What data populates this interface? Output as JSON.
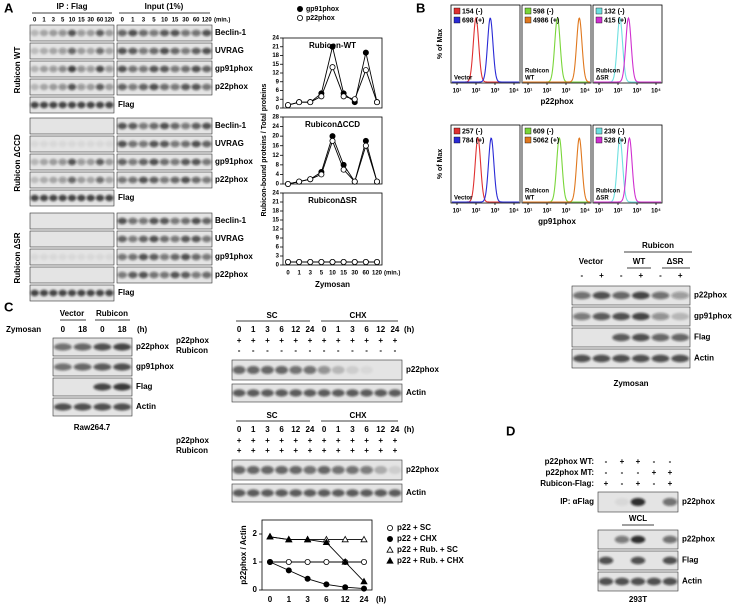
{
  "figure": {
    "panel_a": {
      "label": "A",
      "ip_header": "IP : Flag",
      "input_header": "Input (1%)",
      "times": [
        "0",
        "1",
        "3",
        "5",
        "10",
        "15",
        "30",
        "60",
        "120"
      ],
      "time_unit": "(min.)",
      "groups": [
        {
          "name": "Rubicon WT",
          "blots": [
            "Beclin-1",
            "UVRAG",
            "gp91phox",
            "p22phox"
          ],
          "flag_blot": "Flag"
        },
        {
          "name": "Rubicon ΔCCD",
          "blots": [
            "Beclin-1",
            "UVRAG",
            "gp91phox",
            "p22phox"
          ],
          "flag_blot": "Flag"
        },
        {
          "name": "Rubicon ΔSR",
          "blots": [
            "Beclin-1",
            "UVRAG",
            "gp91phox",
            "p22phox"
          ],
          "flag_blot": "Flag"
        }
      ],
      "chart": {
        "type": "line",
        "y_label": "Rubicon-bound proteins / Total proteins",
        "x_label": "Zymosan",
        "categories": [
          "0",
          "1",
          "3",
          "5",
          "10",
          "15",
          "30",
          "60",
          "120"
        ],
        "x_unit": "(min.)",
        "legend": [
          {
            "name": "gp91phox",
            "marker": "circle-filled"
          },
          {
            "name": "p22phox",
            "marker": "circle-open"
          }
        ],
        "subplots": [
          {
            "title": "Rubicon-WT",
            "ylim": [
              0,
              24
            ],
            "yticks": [
              0,
              3,
              6,
              9,
              12,
              15,
              18,
              21,
              24
            ],
            "series": [
              {
                "values": [
                  1,
                  2,
                  2,
                  5,
                  21,
                  5,
                  2,
                  19,
                  2
                ]
              },
              {
                "values": [
                  1,
                  2,
                  2,
                  4,
                  14,
                  4,
                  3,
                  13,
                  2
                ]
              }
            ]
          },
          {
            "title": "RubiconΔCCD",
            "ylim": [
              0,
              28
            ],
            "yticks": [
              0,
              4,
              8,
              12,
              16,
              20,
              24,
              28
            ],
            "series": [
              {
                "values": [
                  0,
                  1,
                  2,
                  5,
                  20,
                  8,
                  1,
                  18,
                  1
                ]
              },
              {
                "values": [
                  0,
                  1,
                  2,
                  4,
                  18,
                  6,
                  1,
                  16,
                  1
                ]
              }
            ]
          },
          {
            "title": "RubiconΔSR",
            "ylim": [
              0,
              24
            ],
            "yticks": [
              0,
              3,
              6,
              9,
              12,
              15,
              18,
              21,
              24
            ],
            "series": [
              {
                "values": [
                  1,
                  1,
                  1,
                  1,
                  1,
                  1,
                  1,
                  1,
                  1
                ]
              },
              {
                "values": [
                  1,
                  1,
                  1,
                  1,
                  1,
                  1,
                  1,
                  1,
                  1
                ]
              }
            ]
          }
        ]
      }
    },
    "panel_b": {
      "label": "B",
      "y_label": "% of Max",
      "xtick_labels": [
        "10¹",
        "10²",
        "10³",
        "10⁴"
      ],
      "rows": [
        {
          "x_label": "p22phox",
          "boxes": [
            {
              "sample": [
                "Vector"
              ],
              "entries": [
                {
                  "text": "154 (-)",
                  "color": "#e03030"
                },
                {
                  "text": "698 (+)",
                  "color": "#2a2ad6"
                }
              ]
            },
            {
              "sample": [
                "Rubicon",
                "WT"
              ],
              "entries": [
                {
                  "text": "598 (-)",
                  "color": "#7ad63a"
                },
                {
                  "text": "4986 (+)",
                  "color": "#e0781e"
                }
              ]
            },
            {
              "sample": [
                "Rubicon",
                "ΔSR"
              ],
              "entries": [
                {
                  "text": "132 (-)",
                  "color": "#6ee0e0"
                },
                {
                  "text": "415 (+)",
                  "color": "#d030d0"
                }
              ]
            }
          ]
        },
        {
          "x_label": "gp91phox",
          "boxes": [
            {
              "sample": [
                "Vector"
              ],
              "entries": [
                {
                  "text": "257 (-)",
                  "color": "#e03030"
                },
                {
                  "text": "784 (+)",
                  "color": "#2a2ad6"
                }
              ]
            },
            {
              "sample": [
                "Rubicon",
                "WT"
              ],
              "entries": [
                {
                  "text": "609 (-)",
                  "color": "#7ad63a"
                },
                {
                  "text": "5062 (+)",
                  "color": "#e0781e"
                }
              ]
            },
            {
              "sample": [
                "Rubicon",
                "ΔSR"
              ],
              "entries": [
                {
                  "text": "239 (-)",
                  "color": "#6ee0e0"
                },
                {
                  "text": "528 (+)",
                  "color": "#d030d0"
                }
              ]
            }
          ]
        }
      ],
      "western": {
        "rubicon": "Rubicon",
        "groups": [
          "Vector",
          "WT",
          "ΔSR"
        ],
        "signs": [
          "-",
          "+",
          "-",
          "+",
          "-",
          "+"
        ],
        "blots": [
          "p22phox",
          "gp91phox",
          "Flag",
          "Actin"
        ],
        "treatment": "Zymosan"
      }
    },
    "panel_c": {
      "label": "C",
      "left": {
        "vector": "Vector",
        "rubicon": "Rubicon",
        "zymosan": "Zymosan",
        "doses": [
          "0",
          "18",
          "0",
          "18"
        ],
        "unit": "(h)",
        "blots": [
          "p22phox",
          "gp91phox",
          "Flag",
          "Actin"
        ],
        "cell_line": "Raw264.7"
      },
      "chase": [
        {
          "sc": "SC",
          "chx": "CHX",
          "times": [
            "0",
            "1",
            "3",
            "6",
            "12",
            "24",
            "0",
            "1",
            "3",
            "6",
            "12",
            "24"
          ],
          "unit": "(h)",
          "row_labels": [
            "p22phox",
            "Rubicon"
          ],
          "p22phox_signs": [
            "+",
            "+",
            "+",
            "+",
            "+",
            "+",
            "+",
            "+",
            "+",
            "+",
            "+",
            "+"
          ],
          "rubicon_signs": [
            "-",
            "-",
            "-",
            "-",
            "-",
            "-",
            "-",
            "-",
            "-",
            "-",
            "-",
            "-"
          ],
          "blots": [
            "p22phox",
            "Actin"
          ]
        },
        {
          "sc": "SC",
          "chx": "CHX",
          "times": [
            "0",
            "1",
            "3",
            "6",
            "12",
            "24",
            "0",
            "1",
            "3",
            "6",
            "12",
            "24"
          ],
          "unit": "(h)",
          "row_labels": [
            "p22phox",
            "Rubicon"
          ],
          "p22phox_signs": [
            "+",
            "+",
            "+",
            "+",
            "+",
            "+",
            "+",
            "+",
            "+",
            "+",
            "+",
            "+"
          ],
          "rubicon_signs": [
            "+",
            "+",
            "+",
            "+",
            "+",
            "+",
            "+",
            "+",
            "+",
            "+",
            "+",
            "+"
          ],
          "blots": [
            "p22phox",
            "Actin"
          ]
        }
      ],
      "chart": {
        "type": "line",
        "y_label": "p22phox / Actin",
        "categories": [
          "0",
          "1",
          "3",
          "6",
          "12",
          "24"
        ],
        "x_unit": "(h)",
        "ylim": [
          0,
          2.5
        ],
        "yticks": [
          0,
          1,
          2
        ],
        "series": [
          {
            "name": "p22 + SC",
            "marker": "circle-open",
            "values": [
              1,
              1,
              1,
              1,
              1,
              1
            ]
          },
          {
            "name": "p22 + CHX",
            "marker": "circle-filled",
            "values": [
              1,
              0.7,
              0.4,
              0.2,
              0.1,
              0.05
            ]
          },
          {
            "name": "p22 + Rub. + SC",
            "marker": "triangle-open",
            "values": [
              1.9,
              1.8,
              1.8,
              1.8,
              1.8,
              1.8
            ]
          },
          {
            "name": "p22 + Rub. + CHX",
            "marker": "triangle-filled",
            "values": [
              1.9,
              1.8,
              1.8,
              1.7,
              1.0,
              0.3
            ]
          }
        ]
      }
    },
    "panel_d": {
      "label": "D",
      "row_labels": [
        "p22phox WT:",
        "p22phox MT:",
        "Rubicon-Flag:"
      ],
      "signs": [
        [
          "-",
          "+",
          "+",
          "-",
          "-"
        ],
        [
          "-",
          "-",
          "-",
          "+",
          "+"
        ],
        [
          "+",
          "-",
          "+",
          "-",
          "+"
        ]
      ],
      "ip_label": "IP: αFlag",
      "ip_blot": "p22phox",
      "wcl": "WCL",
      "wcl_blots": [
        "p22phox",
        "Flag",
        "Actin"
      ],
      "cell_line": "293T"
    }
  }
}
